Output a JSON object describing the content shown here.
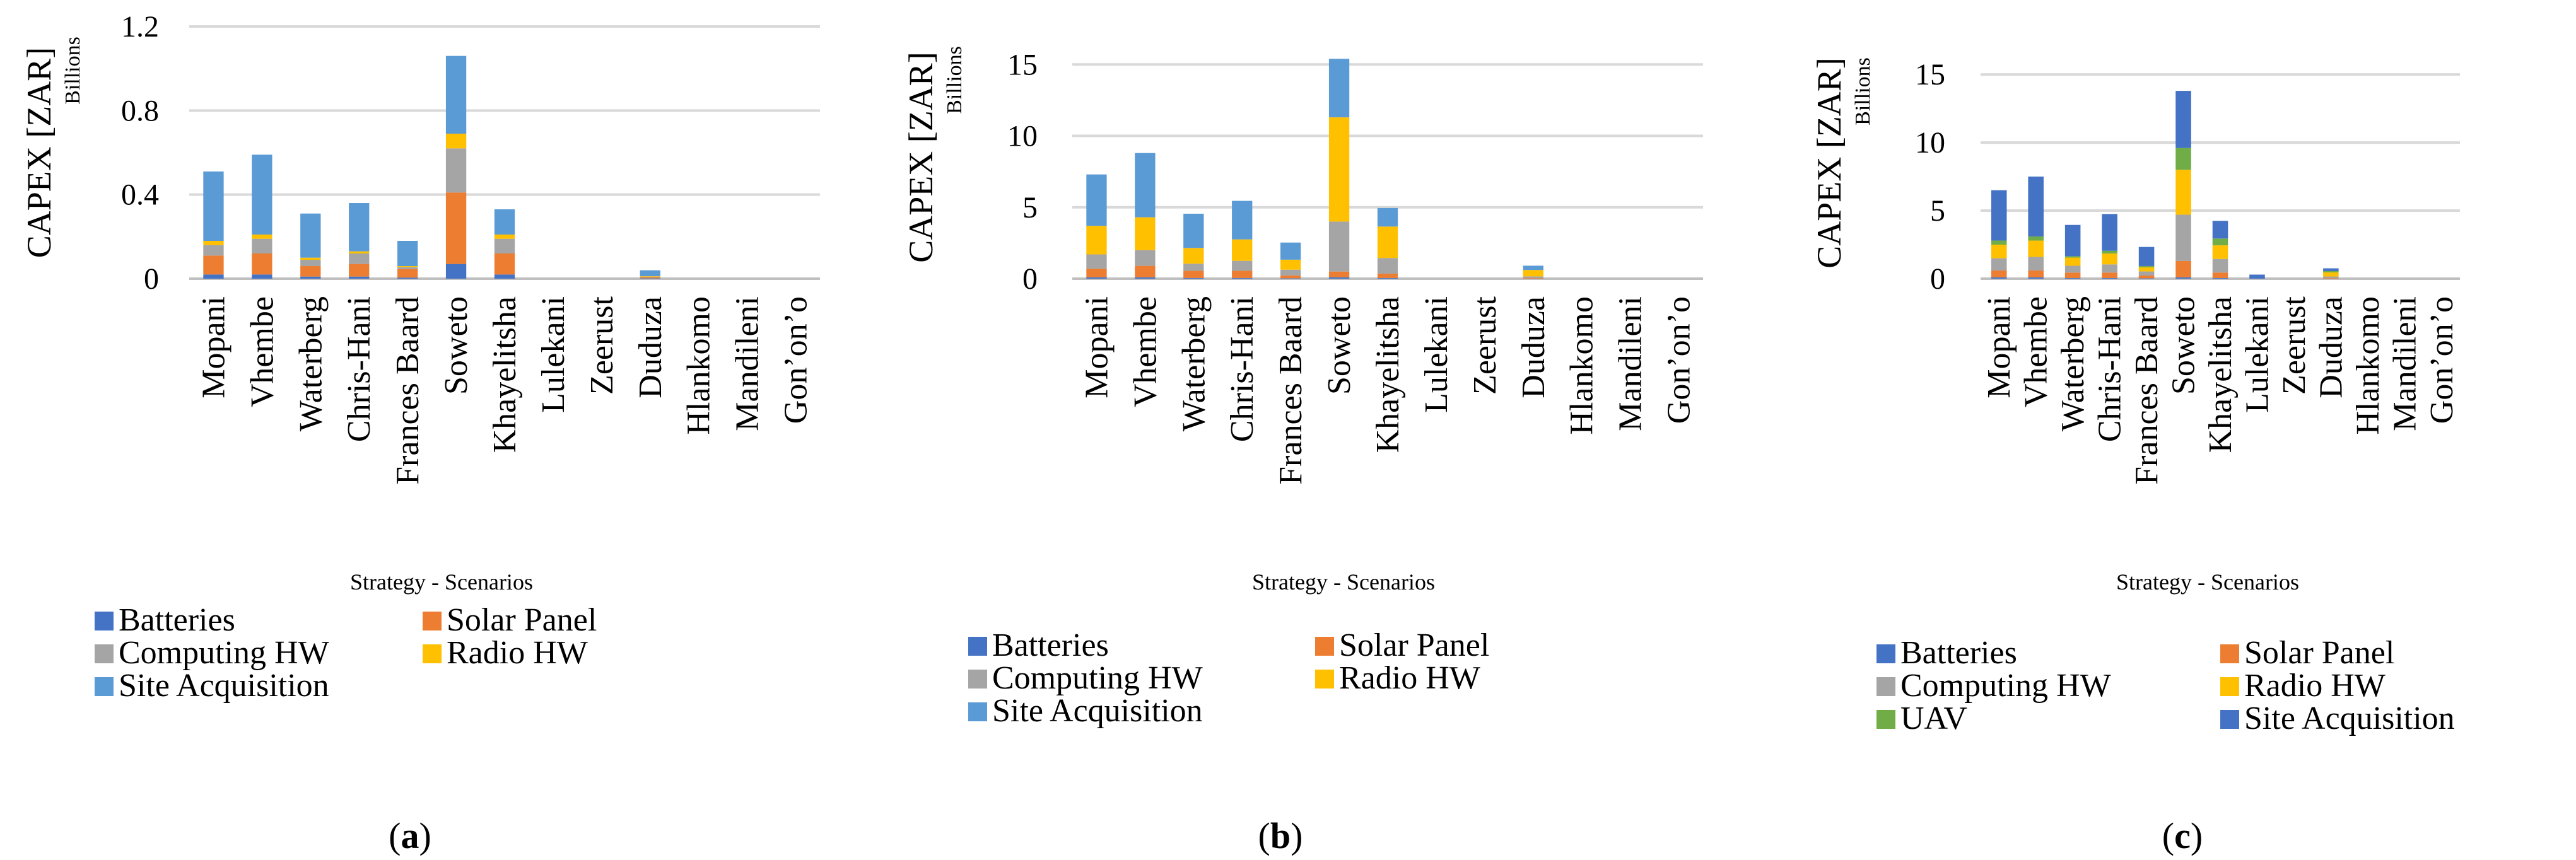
{
  "colors": {
    "batteries": "#4472C4",
    "solar_panel": "#ED7D31",
    "computing_hw": "#A5A5A5",
    "radio_hw": "#FFC000",
    "site_acquisition": "#5B9BD5",
    "uav": "#70AD47",
    "grid": "#D9D9D9",
    "axis": "#BFBFBF",
    "text": "#000000"
  },
  "chart_data": [
    {
      "type": "bar",
      "stacked": true,
      "panel_label": "(a)",
      "panel_letter": "a",
      "ylabel": "CAPEX [ZAR]",
      "yunit": "Billions",
      "xlabel": "Strategy - Scenarios",
      "ylim": [
        0,
        1.2
      ],
      "yticks": [
        "0",
        "0.4",
        "0.8",
        "1.2"
      ],
      "yticks_values": [
        0,
        0.4,
        0.8,
        1.2
      ],
      "grid": true,
      "categories": [
        "Mopani",
        "Vhembe",
        "Waterberg",
        "Chris-Hani",
        "Frances Baard",
        "Soweto",
        "Khayelitsha",
        "Lulekani",
        "Zeerust",
        "Duduza",
        "Hlankomo",
        "Mandileni",
        "Gon’on’o"
      ],
      "series": [
        {
          "name": "Batteries",
          "color_key": "batteries",
          "values": [
            0.02,
            0.02,
            0.01,
            0.01,
            0.005,
            0.07,
            0.02,
            0,
            0,
            0.002,
            0,
            0,
            0
          ]
        },
        {
          "name": "Solar Panel",
          "color_key": "solar_panel",
          "values": [
            0.09,
            0.1,
            0.05,
            0.06,
            0.04,
            0.34,
            0.1,
            0,
            0,
            0.004,
            0,
            0,
            0
          ]
        },
        {
          "name": "Computing HW",
          "color_key": "computing_hw",
          "values": [
            0.05,
            0.07,
            0.03,
            0.05,
            0.01,
            0.21,
            0.07,
            0,
            0,
            0.004,
            0,
            0,
            0
          ]
        },
        {
          "name": "Radio HW",
          "color_key": "radio_hw",
          "values": [
            0.02,
            0.02,
            0.01,
            0.01,
            0.005,
            0.07,
            0.02,
            0,
            0,
            0.002,
            0,
            0,
            0
          ]
        },
        {
          "name": "Site Acquisition",
          "color_key": "site_acquisition",
          "values": [
            0.33,
            0.38,
            0.21,
            0.23,
            0.12,
            0.37,
            0.12,
            0,
            0,
            0.028,
            0,
            0,
            0
          ]
        }
      ],
      "legend": [
        "Batteries",
        "Solar Panel",
        "Computing HW",
        "Radio HW",
        "Site Acquisition"
      ]
    },
    {
      "type": "bar",
      "stacked": true,
      "panel_label": "(b)",
      "panel_letter": "b",
      "ylabel": "CAPEX [ZAR]",
      "yunit": "Billions",
      "xlabel": "Strategy - Scenarios",
      "ylim": [
        0,
        17
      ],
      "yticks": [
        "0",
        "5",
        "10",
        "15"
      ],
      "yticks_values": [
        0,
        5,
        10,
        15
      ],
      "grid": true,
      "categories": [
        "Mopani",
        "Vhembe",
        "Waterberg",
        "Chris-Hani",
        "Frances Baard",
        "Soweto",
        "Khayelitsha",
        "Lulekani",
        "Zeerust",
        "Duduza",
        "Hlankomo",
        "Mandileni",
        "Gon’on’o"
      ],
      "series": [
        {
          "name": "Batteries",
          "color_key": "batteries",
          "values": [
            0.1,
            0.1,
            0.05,
            0.05,
            0.03,
            0.1,
            0.05,
            0,
            0,
            0.01,
            0,
            0,
            0
          ]
        },
        {
          "name": "Solar Panel",
          "color_key": "solar_panel",
          "values": [
            0.6,
            0.8,
            0.5,
            0.5,
            0.2,
            0.4,
            0.3,
            0,
            0,
            0.05,
            0,
            0,
            0
          ]
        },
        {
          "name": "Computing HW",
          "color_key": "computing_hw",
          "values": [
            1.0,
            1.1,
            0.5,
            0.7,
            0.4,
            3.5,
            1.1,
            0,
            0,
            0.1,
            0,
            0,
            0
          ]
        },
        {
          "name": "Radio HW",
          "color_key": "radio_hw",
          "values": [
            2.0,
            2.3,
            1.1,
            1.5,
            0.7,
            7.3,
            2.2,
            0,
            0,
            0.45,
            0,
            0,
            0
          ]
        },
        {
          "name": "Site Acquisition",
          "color_key": "site_acquisition",
          "values": [
            3.6,
            4.5,
            2.4,
            2.7,
            1.2,
            4.1,
            1.3,
            0,
            0,
            0.3,
            0,
            0,
            0
          ]
        }
      ],
      "legend": [
        "Batteries",
        "Solar Panel",
        "Computing HW",
        "Radio HW",
        "Site Acquisition"
      ]
    },
    {
      "type": "bar",
      "stacked": true,
      "panel_label": "(c)",
      "panel_letter": "c",
      "ylabel": "CAPEX [ZAR]",
      "yunit": "Billions",
      "xlabel": "Strategy - Scenarios",
      "ylim": [
        0,
        17
      ],
      "yticks": [
        "0",
        "5",
        "10",
        "15"
      ],
      "yticks_values": [
        0,
        5,
        10,
        15
      ],
      "grid": true,
      "categories": [
        "Mopani",
        "Vhembe",
        "Waterberg",
        "Chris-Hani",
        "Frances Baard",
        "Soweto",
        "Khayelitsha",
        "Lulekani",
        "Zeerust",
        "Duduza",
        "Hlankomo",
        "Mandileni",
        "Gon’on’o"
      ],
      "series": [
        {
          "name": "Batteries",
          "color_key": "batteries",
          "values": [
            0.1,
            0.1,
            0.05,
            0.05,
            0.03,
            0.1,
            0.05,
            0,
            0,
            0.01,
            0,
            0,
            0
          ]
        },
        {
          "name": "Solar Panel",
          "color_key": "solar_panel",
          "values": [
            0.5,
            0.5,
            0.4,
            0.4,
            0.2,
            1.2,
            0.4,
            0,
            0,
            0.05,
            0,
            0,
            0
          ]
        },
        {
          "name": "Computing HW",
          "color_key": "computing_hw",
          "values": [
            0.9,
            1.0,
            0.5,
            0.6,
            0.3,
            3.4,
            1.0,
            0,
            0,
            0.1,
            0,
            0,
            0
          ]
        },
        {
          "name": "Radio HW",
          "color_key": "radio_hw",
          "values": [
            1.0,
            1.2,
            0.6,
            0.8,
            0.3,
            3.3,
            1.0,
            0,
            0,
            0.3,
            0,
            0,
            0
          ]
        },
        {
          "name": "UAV",
          "color_key": "uav",
          "values": [
            0.3,
            0.3,
            0.1,
            0.2,
            0.1,
            1.6,
            0.5,
            0,
            0,
            0.1,
            0,
            0,
            0
          ]
        },
        {
          "name": "Site Acquisition",
          "color_key": "batteries",
          "values": [
            3.7,
            4.4,
            2.3,
            2.7,
            1.4,
            4.2,
            1.3,
            0.3,
            0,
            0.2,
            0,
            0,
            0
          ]
        }
      ],
      "legend": [
        "Batteries",
        "Solar Panel",
        "Computing HW",
        "Radio HW",
        "UAV",
        "Site Acquisition"
      ]
    }
  ]
}
